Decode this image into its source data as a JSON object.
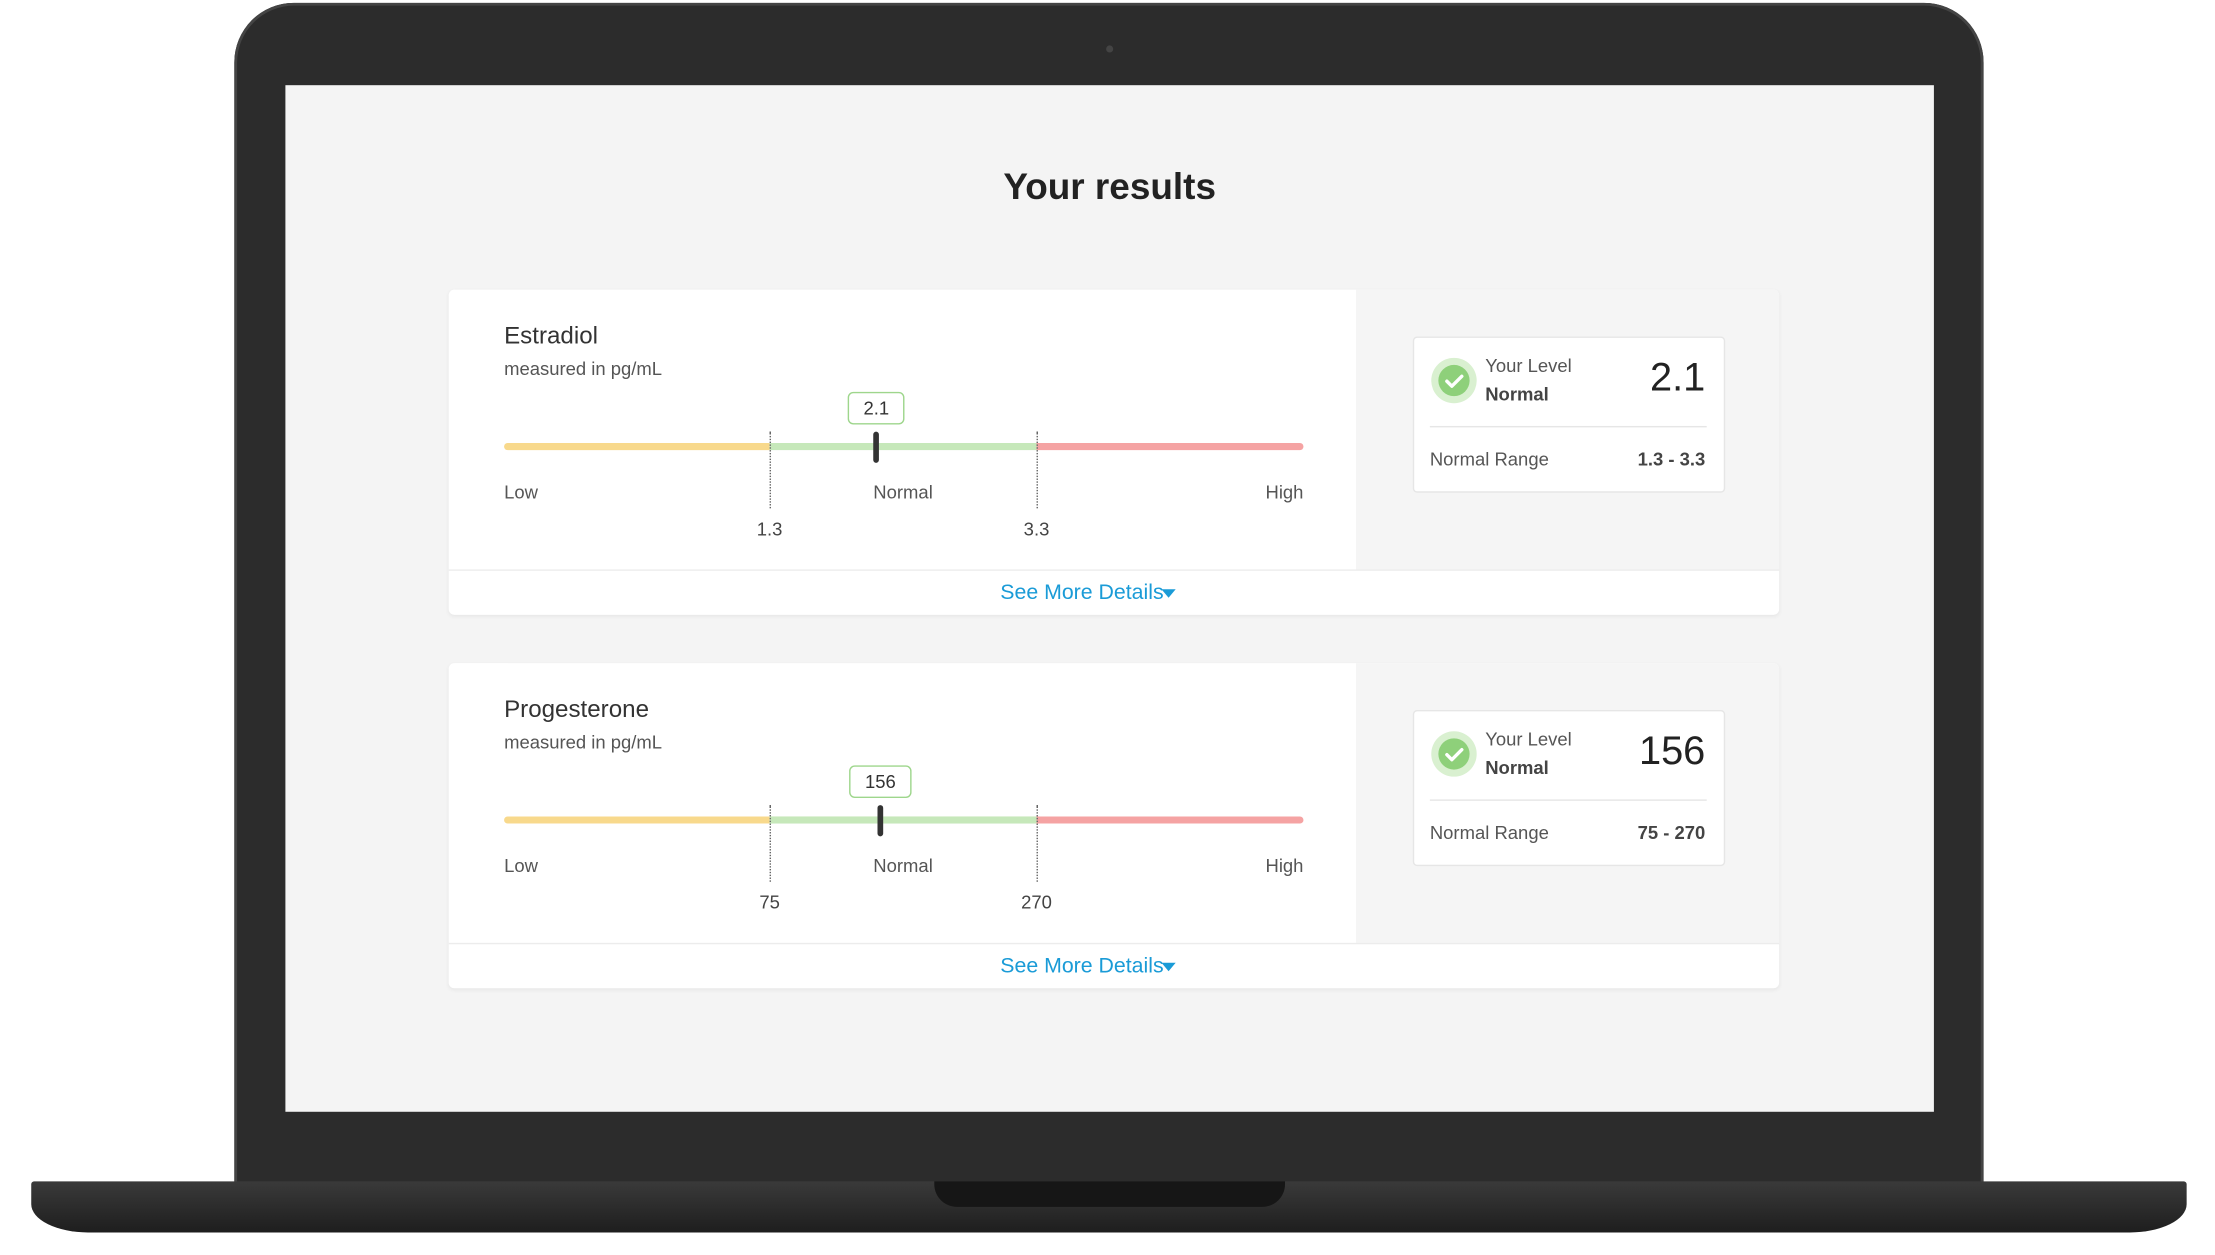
{
  "title": "Your results",
  "results": [
    {
      "name": "Estradiol",
      "unit": "measured in pg/mL",
      "value": 2.1,
      "low": 1.3,
      "high": 3.3,
      "zones": [
        "Low",
        "Normal",
        "High"
      ],
      "level_label": "Your Level",
      "status": "Normal",
      "range_label": "Normal Range",
      "range": "1.3 - 3.3",
      "link": "See More Details"
    },
    {
      "name": "Progesterone",
      "unit": "measured in pg/mL",
      "value": 156,
      "low": 75,
      "high": 270,
      "zones": [
        "Low",
        "Normal",
        "High"
      ],
      "level_label": "Your Level",
      "status": "Normal",
      "range_label": "Normal Range",
      "range": "75 - 270",
      "link": "See More Details"
    }
  ]
}
